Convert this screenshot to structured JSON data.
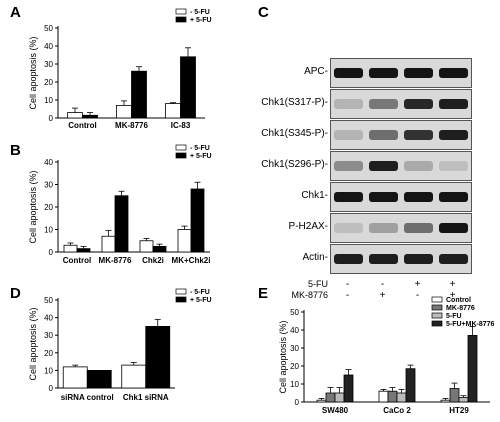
{
  "panels": {
    "A": {
      "letter": "A"
    },
    "B": {
      "letter": "B"
    },
    "C": {
      "letter": "C"
    },
    "D": {
      "letter": "D"
    },
    "E": {
      "letter": "E"
    }
  },
  "chart_data": [
    {
      "id": "A",
      "type": "bar",
      "ylabel": "Cell apoptosis (%)",
      "ylim": [
        0,
        50
      ],
      "yticks": [
        0,
        10,
        20,
        30,
        40,
        50
      ],
      "categories": [
        "Control",
        "MK-8776",
        "IC-83"
      ],
      "series": [
        {
          "name": "- 5-FU",
          "color": "#ffffff",
          "values": [
            3,
            7,
            8
          ],
          "errors": [
            2.5,
            2.5,
            0.5
          ]
        },
        {
          "name": "+ 5-FU",
          "color": "#000000",
          "values": [
            1.5,
            26,
            34
          ],
          "errors": [
            1.5,
            2.5,
            5
          ]
        }
      ],
      "legend": "top-right"
    },
    {
      "id": "B",
      "type": "bar",
      "ylabel": "Cell apoptosis (%)",
      "ylim": [
        0,
        40
      ],
      "yticks": [
        0,
        10,
        20,
        30,
        40
      ],
      "categories": [
        "Control",
        "MK-8776",
        "Chk2i",
        "MK+Chk2i"
      ],
      "series": [
        {
          "name": "- 5-FU",
          "color": "#ffffff",
          "values": [
            3,
            7,
            5,
            10
          ],
          "errors": [
            1,
            2.5,
            1,
            1.5
          ]
        },
        {
          "name": "+ 5-FU",
          "color": "#000000",
          "values": [
            1.5,
            25,
            2.5,
            28
          ],
          "errors": [
            1,
            2,
            1,
            3
          ]
        }
      ],
      "legend": "top-right"
    },
    {
      "id": "D",
      "type": "bar",
      "ylabel": "Cell apoptosis (%)",
      "ylim": [
        0,
        50
      ],
      "yticks": [
        0,
        10,
        20,
        30,
        40,
        50
      ],
      "categories": [
        "siRNA control",
        "Chk1 siRNA"
      ],
      "series": [
        {
          "name": "- 5-FU",
          "color": "#ffffff",
          "values": [
            12,
            13
          ],
          "errors": [
            1,
            1.5
          ]
        },
        {
          "name": "+ 5-FU",
          "color": "#000000",
          "values": [
            10,
            35
          ],
          "errors": [
            0,
            4
          ]
        }
      ],
      "legend": "top-right"
    },
    {
      "id": "E",
      "type": "bar",
      "ylabel": "Cell apoptosis (%)",
      "ylim": [
        0,
        50
      ],
      "yticks": [
        0,
        10,
        20,
        30,
        40,
        50
      ],
      "categories": [
        "SW480",
        "CaCo 2",
        "HT29"
      ],
      "series": [
        {
          "name": "Control",
          "color": "#ffffff",
          "values": [
            1,
            6,
            1
          ],
          "errors": [
            1,
            1,
            1
          ]
        },
        {
          "name": "MK-8776",
          "color": "#777777",
          "values": [
            5,
            6,
            7.5
          ],
          "errors": [
            3,
            2,
            3
          ]
        },
        {
          "name": "5-FU",
          "color": "#bbbbbb",
          "values": [
            5,
            5,
            2.5
          ],
          "errors": [
            3,
            2,
            1
          ]
        },
        {
          "name": "5-FU+MK-8776",
          "color": "#222222",
          "values": [
            15,
            18.5,
            37
          ],
          "errors": [
            3,
            2,
            5
          ]
        }
      ],
      "legend": "top-right"
    }
  ],
  "blot": {
    "rows": [
      {
        "label": "APC-",
        "pattern": [
          0.95,
          0.95,
          0.95,
          0.95
        ]
      },
      {
        "label": "Chk1(S317-P)-",
        "pattern": [
          0.15,
          0.45,
          0.85,
          0.9
        ]
      },
      {
        "label": "Chk1(S345-P)-",
        "pattern": [
          0.15,
          0.5,
          0.8,
          0.9
        ]
      },
      {
        "label": "Chk1(S296-P)-",
        "pattern": [
          0.35,
          0.9,
          0.2,
          0.1
        ]
      },
      {
        "label": "Chk1-",
        "pattern": [
          0.95,
          0.95,
          0.95,
          0.95
        ]
      },
      {
        "label": "P-H2AX-",
        "pattern": [
          0.1,
          0.25,
          0.5,
          0.95
        ]
      },
      {
        "label": "Actin-",
        "pattern": [
          0.9,
          0.9,
          0.9,
          0.9
        ]
      }
    ],
    "conditions": [
      {
        "label": "5-FU",
        "signs": [
          "-",
          "-",
          "+",
          "+"
        ]
      },
      {
        "label": "MK-8776",
        "signs": [
          "-",
          "+",
          "-",
          "+"
        ]
      }
    ]
  }
}
